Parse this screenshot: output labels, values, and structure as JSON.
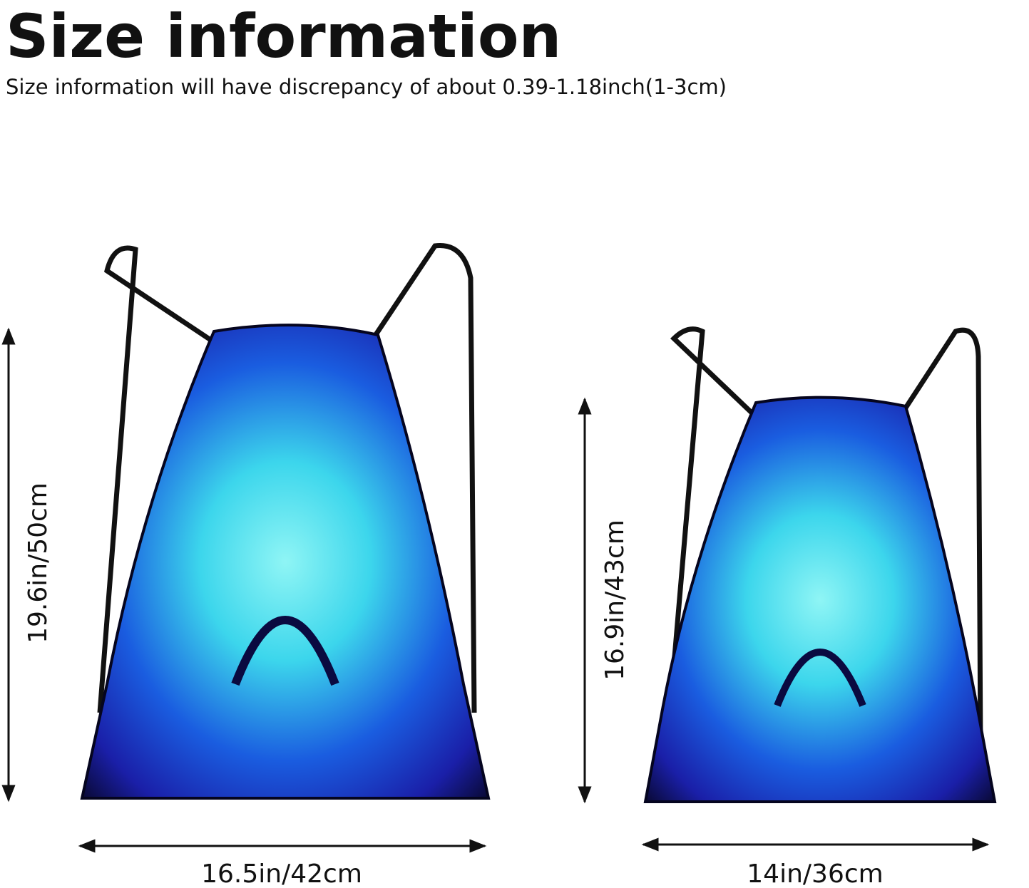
{
  "header": {
    "title": "Size information",
    "subtitle": "Size information will have discrepancy of about 0.39-1.18inch(1-3cm)"
  },
  "bags": [
    {
      "height": "19.6in/50cm",
      "width": "16.5in/42cm"
    },
    {
      "height": "16.9in/43cm",
      "width": "14in/36cm"
    }
  ]
}
